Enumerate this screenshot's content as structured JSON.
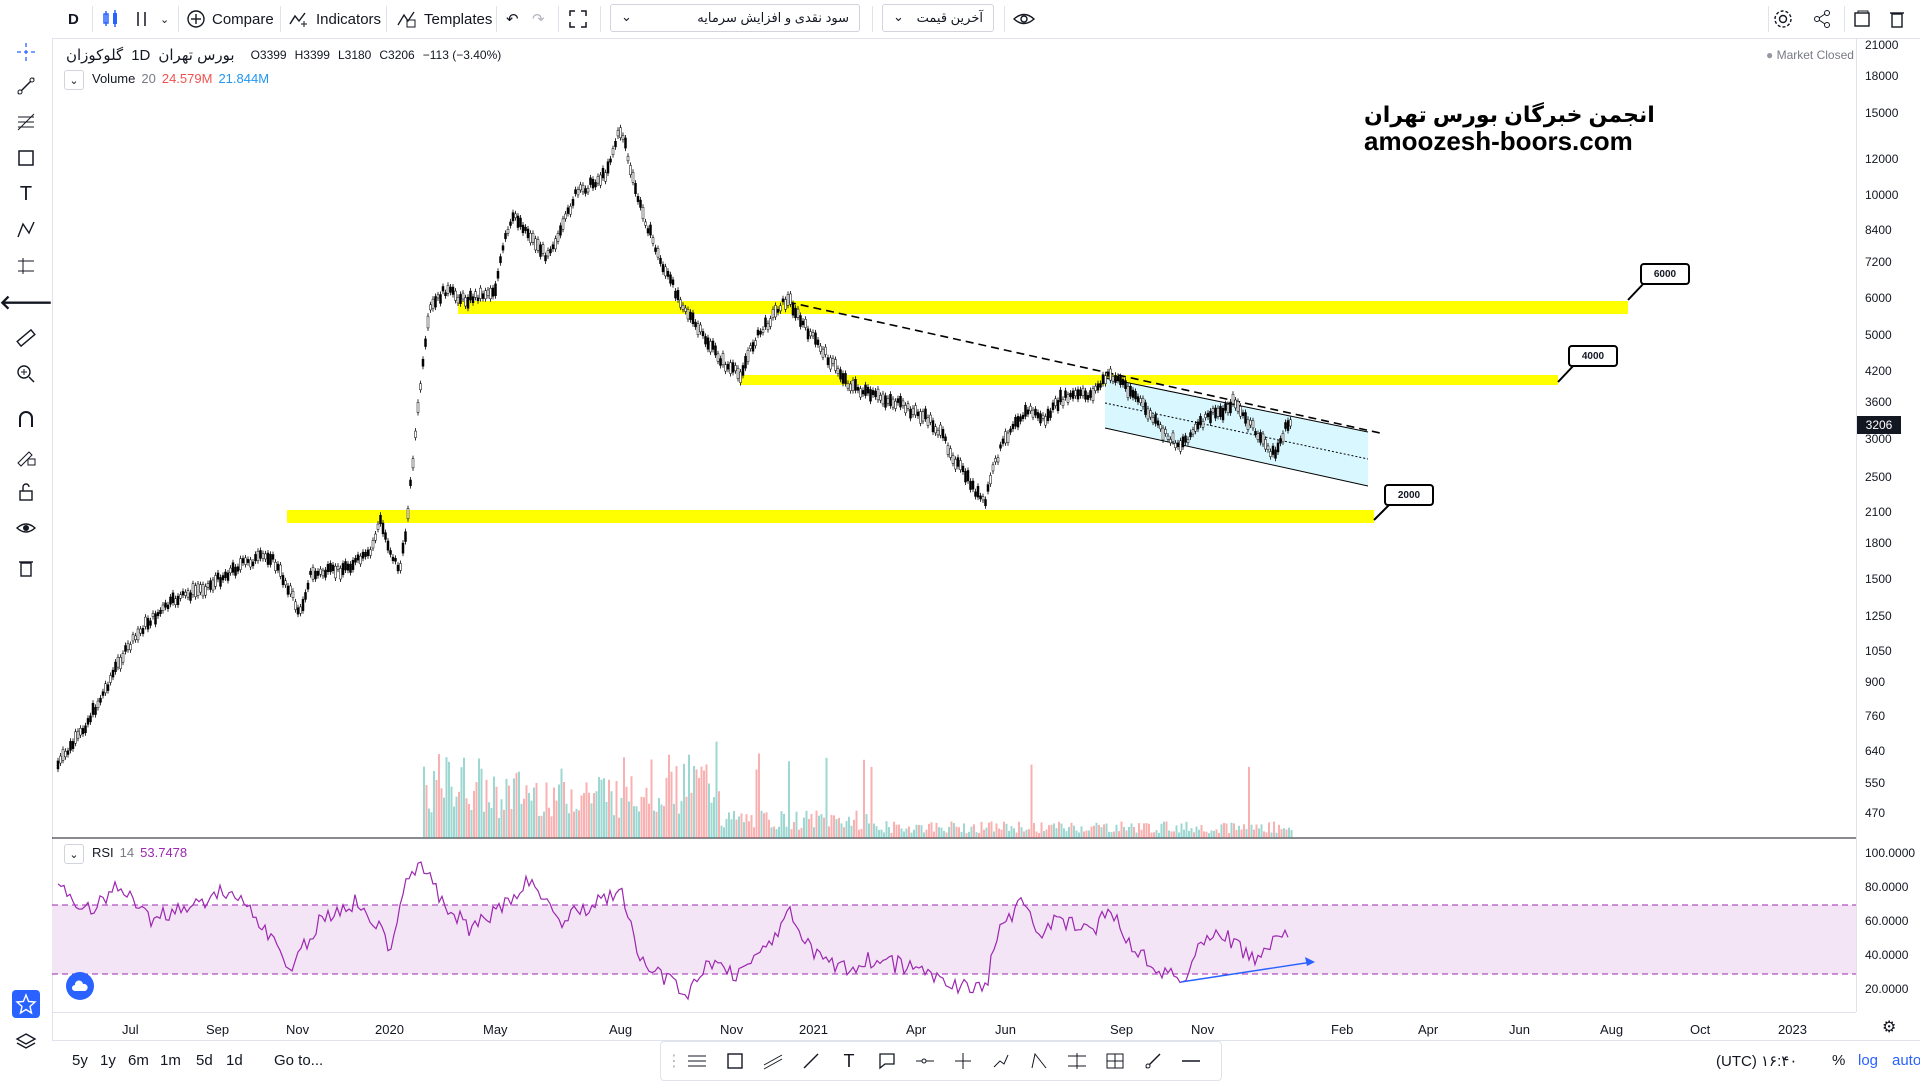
{
  "toolbar": {
    "interval": "D",
    "compare_label": "Compare",
    "indicators_label": "Indicators",
    "templates_label": "Templates",
    "dropdown_1": "سود نقدی و افزایش سرمایه",
    "dropdown_2": "آخرین قیمت"
  },
  "symbol": {
    "name": "گلوکوزان",
    "interval": "1D",
    "exchange": "بورس تهران",
    "ohlc": {
      "o": "O3399",
      "h": "H3399",
      "l": "L3180",
      "c": "C3206",
      "chg": "−113 (−3.40%)"
    },
    "market_status": "Market Closed"
  },
  "volume": {
    "label": "Volume",
    "period": "20",
    "value1": "24.579M",
    "value2": "21.844M"
  },
  "rsi": {
    "label": "RSI",
    "period": "14",
    "value": "53.7478"
  },
  "watermark": {
    "title": "انجمن خبرگان بورس تهران",
    "url": "amoozesh-boors.com"
  },
  "callouts": [
    "6000",
    "4000",
    "2000"
  ],
  "price_axis": [
    "21000",
    "18000",
    "15000",
    "12000",
    "10000",
    "8400",
    "7200",
    "6000",
    "5000",
    "4200",
    "3600",
    "3000",
    "2500",
    "2100",
    "1800",
    "1500",
    "1250",
    "1050",
    "900",
    "760",
    "640",
    "550",
    "470"
  ],
  "last_price_tag": "3206",
  "rsi_axis": [
    "100.0000",
    "80.0000",
    "60.0000",
    "40.0000",
    "20.0000"
  ],
  "time_axis": [
    "Jul",
    "Sep",
    "Nov",
    "2020",
    "May",
    "Aug",
    "Nov",
    "2021",
    "Apr",
    "Jun",
    "Sep",
    "Nov",
    "Feb",
    "Apr",
    "Jun",
    "Aug",
    "Oct",
    "2023"
  ],
  "bottom": {
    "ranges": [
      "5y",
      "1y",
      "6m",
      "1m",
      "5d",
      "1d"
    ],
    "goto": "Go to...",
    "clock": "۱۶:۴۰ (UTC)",
    "pct": "%",
    "log": "log",
    "auto": "auto"
  },
  "colors": {
    "accent": "#2962ff",
    "highlight": "#ffff00",
    "channel": "#d9f7ff",
    "rsi_line": "#9c27b0",
    "up": "#26a69a",
    "down": "#ef5350"
  }
}
